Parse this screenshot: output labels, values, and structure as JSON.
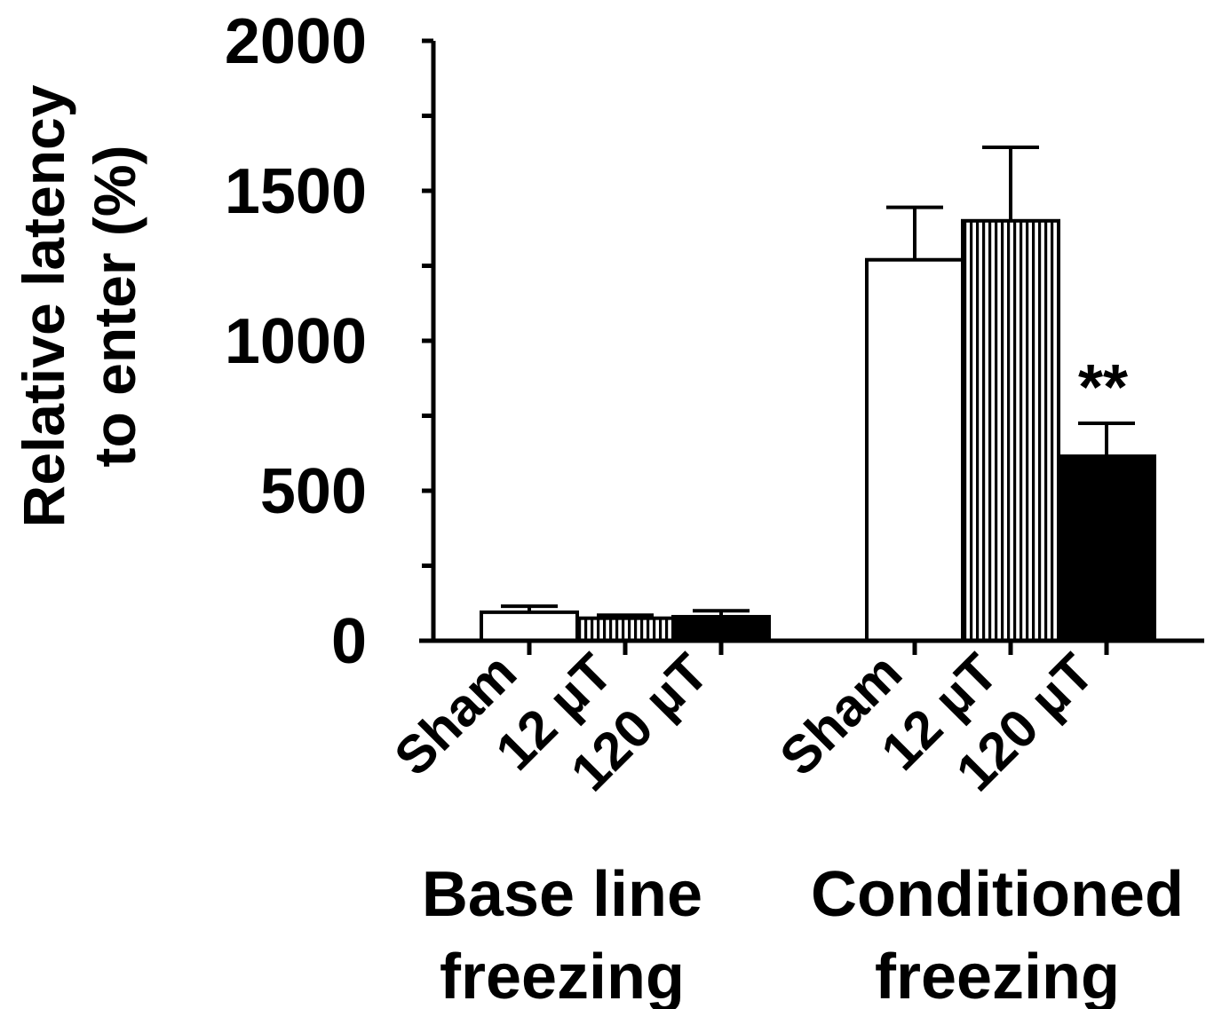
{
  "chart_data": {
    "type": "bar",
    "ylabel": [
      "Relative latency",
      "to enter (%)"
    ],
    "ylim": [
      0,
      2000
    ],
    "yticks": [
      "0",
      "500",
      "1000",
      "1500",
      "2000"
    ],
    "grid": false,
    "groups": [
      {
        "label": [
          "Base line",
          "freezing"
        ],
        "bars": [
          {
            "category": "Sham",
            "value": 95,
            "error": 20,
            "fill": "white"
          },
          {
            "category": "12 µT",
            "value": 75,
            "error": 10,
            "fill": "vertical-stripes"
          },
          {
            "category": "120 µT",
            "value": 80,
            "error": 20,
            "fill": "black"
          }
        ]
      },
      {
        "label": [
          "Conditioned",
          "freezing"
        ],
        "bars": [
          {
            "category": "Sham",
            "value": 1270,
            "error": 175,
            "fill": "white"
          },
          {
            "category": "12 µT",
            "value": 1400,
            "error": 245,
            "fill": "vertical-stripes"
          },
          {
            "category": "120 µT",
            "value": 615,
            "error": 110,
            "fill": "black",
            "annotation": "**"
          }
        ]
      }
    ]
  }
}
